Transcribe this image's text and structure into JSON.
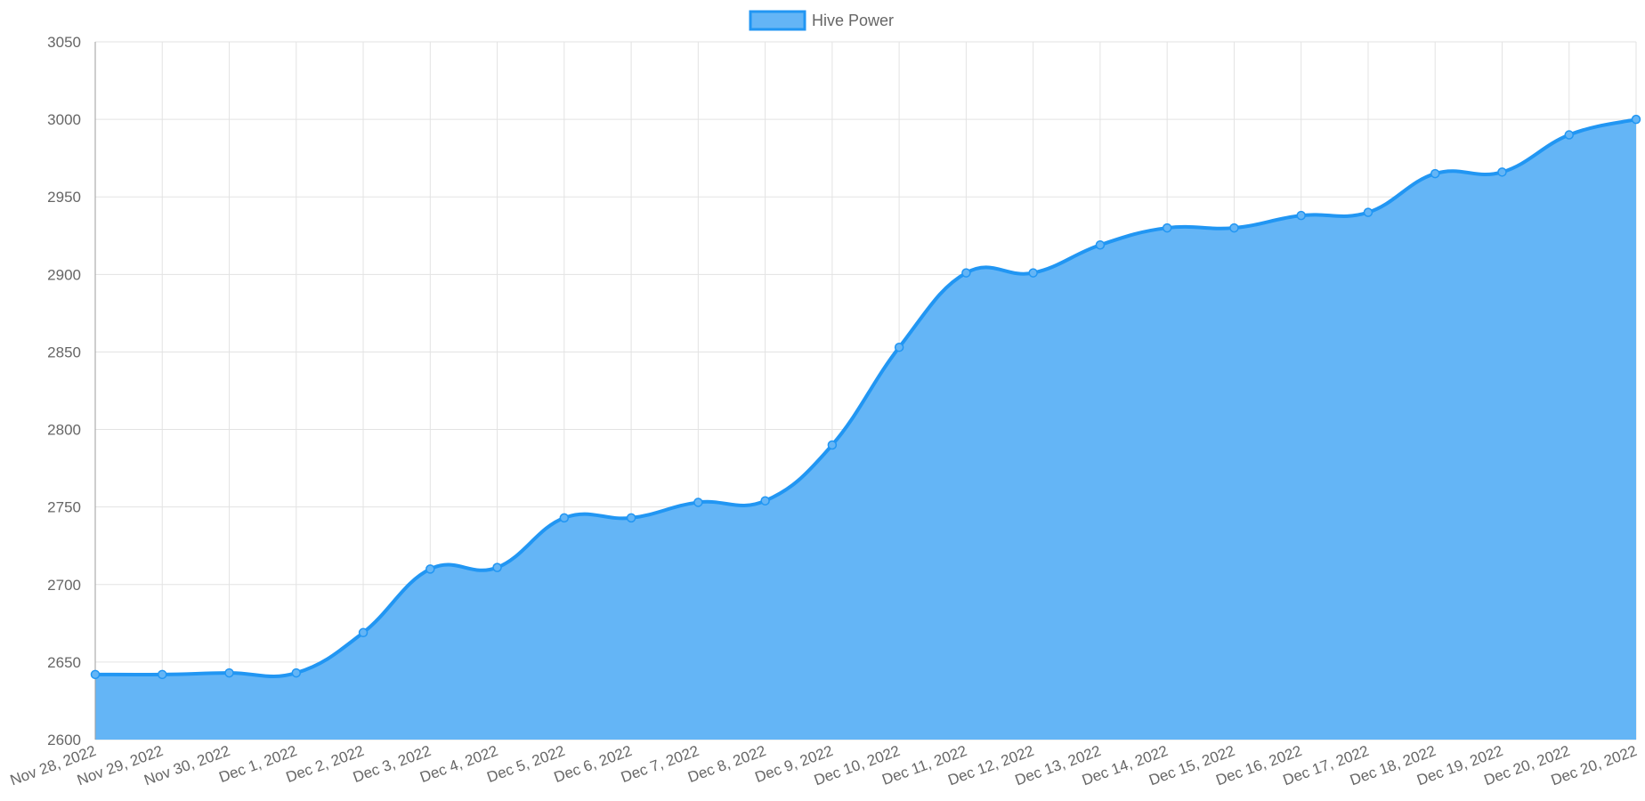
{
  "chart_data": {
    "type": "area",
    "legend": {
      "position": "top-center"
    },
    "grid": true,
    "ylim": [
      2600,
      3050
    ],
    "yticks": [
      2600,
      2650,
      2700,
      2750,
      2800,
      2850,
      2900,
      2950,
      3000,
      3050
    ],
    "x": [
      "Nov 28, 2022",
      "Nov 29, 2022",
      "Nov 30, 2022",
      "Dec 1, 2022",
      "Dec 2, 2022",
      "Dec 3, 2022",
      "Dec 4, 2022",
      "Dec 5, 2022",
      "Dec 6, 2022",
      "Dec 7, 2022",
      "Dec 8, 2022",
      "Dec 9, 2022",
      "Dec 10, 2022",
      "Dec 11, 2022",
      "Dec 12, 2022",
      "Dec 13, 2022",
      "Dec 14, 2022",
      "Dec 15, 2022",
      "Dec 16, 2022",
      "Dec 17, 2022",
      "Dec 18, 2022",
      "Dec 19, 2022",
      "Dec 20, 2022",
      "Dec 20, 2022"
    ],
    "series": [
      {
        "name": "Hive Power",
        "color": "#2196f3",
        "fill": "#64b5f6",
        "values": [
          2642,
          2642,
          2643,
          2643,
          2669,
          2710,
          2711,
          2743,
          2743,
          2753,
          2754,
          2790,
          2853,
          2901,
          2901,
          2919,
          2930,
          2930,
          2938,
          2940,
          2965,
          2966,
          2990,
          3000
        ]
      }
    ]
  }
}
